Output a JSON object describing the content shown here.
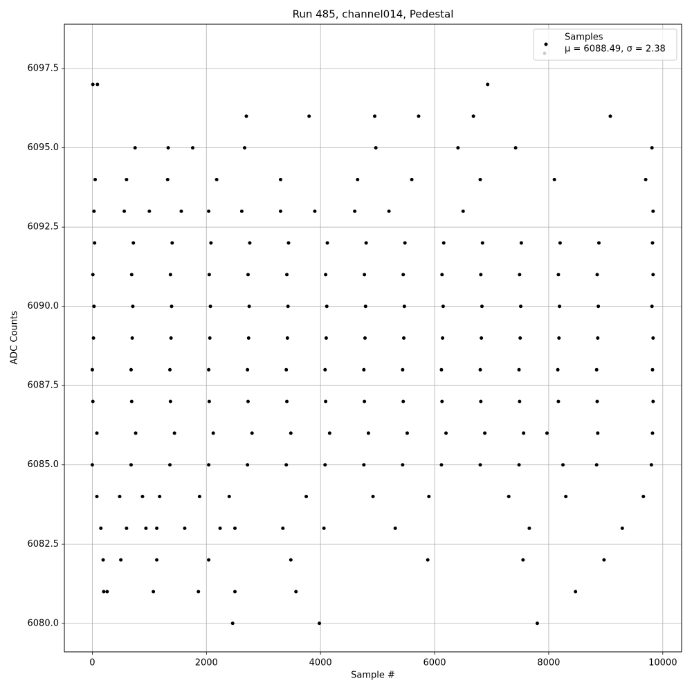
{
  "chart_data": {
    "type": "scatter",
    "title": "Run 485, channel014, Pedestal",
    "x_label": "Sample #",
    "y_label": "ADC Counts",
    "xlim": [
      -490,
      10330
    ],
    "ylim": [
      6079.1,
      6098.9
    ],
    "xticks": [
      0,
      2000,
      4000,
      6000,
      8000,
      10000
    ],
    "yticks": [
      {
        "value": 6080,
        "label": "6080.0"
      },
      {
        "value": 6082.5,
        "label": "6082.5"
      },
      {
        "value": 6085,
        "label": "6085.0"
      },
      {
        "value": 6087.5,
        "label": "6087.5"
      },
      {
        "value": 6090,
        "label": "6090.0"
      },
      {
        "value": 6092.5,
        "label": "6092.5"
      },
      {
        "value": 6095,
        "label": "6095.0"
      },
      {
        "value": 6097.5,
        "label": "6097.5"
      }
    ],
    "grid": true,
    "legend": "upper right",
    "series": [
      {
        "name": "Samples",
        "color": "#000000",
        "x": [
          40,
          720,
          1400,
          2080,
          2760,
          3440,
          4120,
          4800,
          5480,
          6160,
          6840,
          7520,
          8200,
          8880,
          9820,
          10,
          690,
          1370,
          2050,
          2730,
          3410,
          4090,
          4770,
          5450,
          6130,
          6810,
          7490,
          8170,
          8850,
          9830,
          30,
          710,
          1390,
          2070,
          2750,
          3430,
          4110,
          4790,
          5470,
          6150,
          6830,
          7510,
          8190,
          8870,
          9810,
          20,
          700,
          1380,
          2060,
          2740,
          3420,
          4100,
          4780,
          5460,
          6140,
          6820,
          7500,
          8180,
          8860,
          9830,
          0,
          680,
          1360,
          2040,
          2720,
          3400,
          4080,
          4760,
          5440,
          6120,
          6800,
          7480,
          8160,
          8840,
          9820,
          10,
          690,
          1370,
          2050,
          2730,
          3410,
          4090,
          4770,
          5450,
          6130,
          6810,
          7490,
          8170,
          8850,
          9830,
          80,
          760,
          1440,
          2120,
          2800,
          3480,
          4160,
          4840,
          5520,
          6200,
          6880,
          7560,
          7970,
          8860,
          9820,
          0,
          680,
          1360,
          2040,
          2720,
          3400,
          4080,
          4760,
          5440,
          6120,
          6800,
          7480,
          8250,
          8840,
          9800,
          30,
          560,
          1000,
          1560,
          2040,
          2620,
          3300,
          3900,
          4600,
          5200,
          6500,
          9830,
          80,
          480,
          880,
          1180,
          1880,
          2400,
          3750,
          4920,
          5900,
          7300,
          8300,
          9660,
          150,
          600,
          940,
          1130,
          1620,
          2240,
          2500,
          3340,
          4060,
          5310,
          7660,
          9290,
          50,
          600,
          1320,
          2180,
          3300,
          4650,
          5600,
          6800,
          8100,
          9700,
          750,
          1330,
          1760,
          2670,
          4970,
          6410,
          7420,
          9810,
          2700,
          3800,
          4950,
          5720,
          6680,
          9080,
          10,
          90,
          6930,
          190,
          500,
          1130,
          2040,
          3480,
          5880,
          7550,
          8970,
          200,
          260,
          1070,
          1860,
          2500,
          3570,
          8470,
          2460,
          3980,
          7800
        ],
        "y": [
          6092,
          6092,
          6092,
          6092,
          6092,
          6092,
          6092,
          6092,
          6092,
          6092,
          6092,
          6092,
          6092,
          6092,
          6092,
          6091,
          6091,
          6091,
          6091,
          6091,
          6091,
          6091,
          6091,
          6091,
          6091,
          6091,
          6091,
          6091,
          6091,
          6091,
          6090,
          6090,
          6090,
          6090,
          6090,
          6090,
          6090,
          6090,
          6090,
          6090,
          6090,
          6090,
          6090,
          6090,
          6090,
          6089,
          6089,
          6089,
          6089,
          6089,
          6089,
          6089,
          6089,
          6089,
          6089,
          6089,
          6089,
          6089,
          6089,
          6089,
          6088,
          6088,
          6088,
          6088,
          6088,
          6088,
          6088,
          6088,
          6088,
          6088,
          6088,
          6088,
          6088,
          6088,
          6088,
          6087,
          6087,
          6087,
          6087,
          6087,
          6087,
          6087,
          6087,
          6087,
          6087,
          6087,
          6087,
          6087,
          6087,
          6087,
          6086,
          6086,
          6086,
          6086,
          6086,
          6086,
          6086,
          6086,
          6086,
          6086,
          6086,
          6086,
          6086,
          6086,
          6086,
          6085,
          6085,
          6085,
          6085,
          6085,
          6085,
          6085,
          6085,
          6085,
          6085,
          6085,
          6085,
          6085,
          6085,
          6085,
          6093,
          6093,
          6093,
          6093,
          6093,
          6093,
          6093,
          6093,
          6093,
          6093,
          6093,
          6093,
          6084,
          6084,
          6084,
          6084,
          6084,
          6084,
          6084,
          6084,
          6084,
          6084,
          6084,
          6084,
          6083,
          6083,
          6083,
          6083,
          6083,
          6083,
          6083,
          6083,
          6083,
          6083,
          6083,
          6083,
          6094,
          6094,
          6094,
          6094,
          6094,
          6094,
          6094,
          6094,
          6094,
          6094,
          6095,
          6095,
          6095,
          6095,
          6095,
          6095,
          6095,
          6095,
          6096,
          6096,
          6096,
          6096,
          6096,
          6096,
          6097,
          6097,
          6097,
          6082,
          6082,
          6082,
          6082,
          6082,
          6082,
          6082,
          6082,
          6081,
          6081,
          6081,
          6081,
          6081,
          6081,
          6081,
          6080,
          6080,
          6080
        ]
      },
      {
        "name": "μ = 6088.49, σ = 2.38",
        "color": "#cccccc",
        "x": [],
        "y": []
      }
    ]
  }
}
